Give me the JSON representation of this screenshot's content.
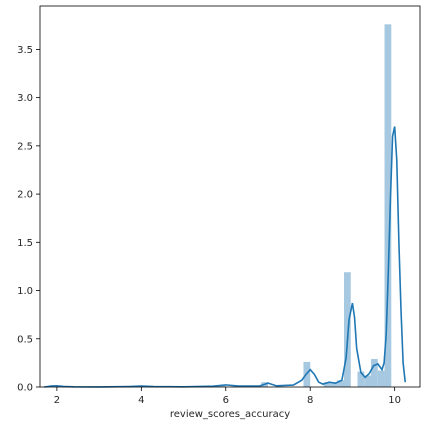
{
  "chart_data": {
    "type": "histogram",
    "title": "",
    "xlabel": "review_scores_accuracy",
    "ylabel": "",
    "xlim": [
      1.6,
      10.6
    ],
    "ylim": [
      0,
      3.95
    ],
    "xticks": [
      2,
      4,
      6,
      8,
      10
    ],
    "yticks": [
      0.0,
      0.5,
      1.0,
      1.5,
      2.0,
      2.5,
      3.0,
      3.5
    ],
    "ytick_labels": [
      "0.0",
      "0.5",
      "1.0",
      "1.5",
      "2.0",
      "2.5",
      "3.0",
      "3.5"
    ],
    "grid": false,
    "legend": "none",
    "bar_color": "#a6c8e0",
    "kde_color": "#1f77b4",
    "bins": [
      {
        "x0": 1.84,
        "x1": 2.0,
        "height": 0.02
      },
      {
        "x0": 3.84,
        "x1": 4.0,
        "height": 0.01
      },
      {
        "x0": 5.84,
        "x1": 6.0,
        "height": 0.02
      },
      {
        "x0": 6.84,
        "x1": 7.0,
        "height": 0.05
      },
      {
        "x0": 7.84,
        "x1": 8.0,
        "height": 0.26
      },
      {
        "x0": 8.32,
        "x1": 8.48,
        "height": 0.05
      },
      {
        "x0": 8.48,
        "x1": 8.64,
        "height": 0.04
      },
      {
        "x0": 8.64,
        "x1": 8.8,
        "height": 0.07
      },
      {
        "x0": 8.8,
        "x1": 8.96,
        "height": 1.19
      },
      {
        "x0": 9.12,
        "x1": 9.28,
        "height": 0.16
      },
      {
        "x0": 9.28,
        "x1": 9.44,
        "height": 0.12
      },
      {
        "x0": 9.44,
        "x1": 9.6,
        "height": 0.29
      },
      {
        "x0": 9.6,
        "x1": 9.76,
        "height": 0.17
      },
      {
        "x0": 9.76,
        "x1": 9.92,
        "height": 3.76
      }
    ],
    "kde": {
      "x": [
        1.7,
        1.85,
        2.0,
        2.15,
        2.4,
        3.0,
        3.7,
        4.0,
        4.3,
        5.0,
        5.7,
        6.0,
        6.3,
        6.8,
        7.0,
        7.2,
        7.6,
        7.8,
        7.9,
        8.0,
        8.1,
        8.2,
        8.3,
        8.45,
        8.6,
        8.75,
        8.85,
        8.92,
        9.0,
        9.05,
        9.1,
        9.2,
        9.3,
        9.4,
        9.5,
        9.6,
        9.65,
        9.7,
        9.75,
        9.8,
        9.85,
        9.9,
        9.95,
        10.0,
        10.05,
        10.1,
        10.15,
        10.2,
        10.25
      ],
      "y": [
        0.0,
        0.008,
        0.013,
        0.006,
        0.002,
        0.001,
        0.005,
        0.01,
        0.004,
        0.002,
        0.008,
        0.022,
        0.01,
        0.01,
        0.04,
        0.012,
        0.02,
        0.07,
        0.13,
        0.18,
        0.13,
        0.05,
        0.03,
        0.05,
        0.04,
        0.07,
        0.3,
        0.7,
        0.87,
        0.72,
        0.4,
        0.15,
        0.1,
        0.14,
        0.22,
        0.24,
        0.21,
        0.18,
        0.25,
        0.55,
        1.2,
        1.95,
        2.6,
        2.7,
        2.35,
        1.5,
        0.8,
        0.25,
        0.05
      ]
    }
  }
}
